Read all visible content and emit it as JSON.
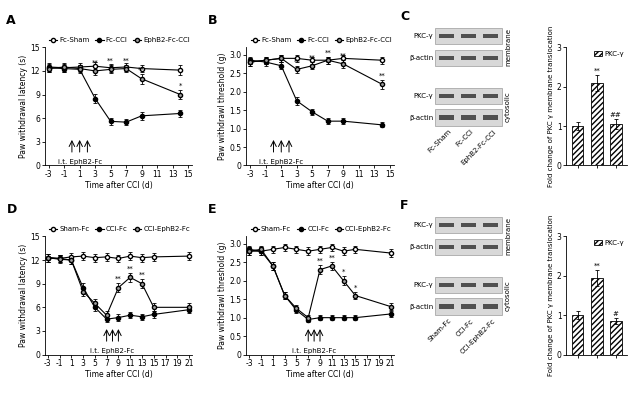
{
  "chart_data": [
    {
      "panel": "A",
      "type": "line",
      "x_label": "Time after CCI (d)",
      "y_label": "Paw withdrawal latency (s)",
      "x": [
        -3,
        -1,
        1,
        3,
        5,
        7,
        9,
        14
      ],
      "xlim": [
        -3.5,
        15.5
      ],
      "xticks": [
        -3,
        -1,
        1,
        3,
        5,
        7,
        9,
        11,
        13,
        15
      ],
      "ylim": [
        0,
        15
      ],
      "yticks": [
        0,
        3,
        6,
        9,
        12,
        15
      ],
      "legend": "top",
      "line_style": "solid",
      "series": [
        {
          "name": "Fc-Sham",
          "color": "#ffffff",
          "marker": "o",
          "values": [
            12.5,
            12.4,
            12.5,
            12.6,
            12.4,
            12.5,
            12.3,
            12.1
          ],
          "errors": [
            0.5,
            0.5,
            0.5,
            0.5,
            0.5,
            0.5,
            0.5,
            0.6
          ],
          "significance": [
            null,
            null,
            null,
            null,
            null,
            null,
            null,
            null
          ]
        },
        {
          "name": "Fc-CCI",
          "color": "#000000",
          "marker": "o",
          "values": [
            12.4,
            12.3,
            12.2,
            8.5,
            5.6,
            5.5,
            6.3,
            6.6
          ],
          "errors": [
            0.5,
            0.5,
            0.5,
            0.6,
            0.4,
            0.4,
            0.5,
            0.5
          ],
          "significance": [
            null,
            null,
            null,
            null,
            null,
            null,
            null,
            null
          ]
        },
        {
          "name": "EphB2-Fc-CCI",
          "color": "#a0a0a0",
          "marker": "o",
          "values": [
            12.3,
            12.5,
            12.3,
            12.0,
            12.2,
            12.3,
            11.0,
            9.0
          ],
          "errors": [
            0.5,
            0.5,
            0.5,
            0.5,
            0.5,
            0.5,
            0.6,
            0.6
          ],
          "significance": [
            null,
            null,
            null,
            "**",
            "**",
            "**",
            "**",
            "*"
          ]
        }
      ],
      "annotations": [
        {
          "text": "i.t. EphB2-Fc",
          "x": [
            0,
            1,
            2
          ]
        }
      ]
    },
    {
      "panel": "B",
      "type": "line",
      "x_label": "Time after CCI (d)",
      "y_label": "Paw withdrawl threshold (g)",
      "x": [
        -3,
        -1,
        1,
        3,
        5,
        7,
        9,
        14
      ],
      "xlim": [
        -3.5,
        15.5
      ],
      "xticks": [
        -3,
        -1,
        1,
        3,
        5,
        7,
        9,
        11,
        13,
        15
      ],
      "ylim": [
        0,
        3.2
      ],
      "yticks": [
        0,
        0.5,
        {
          "value": 1,
          "label": "1.0"
        },
        1.5,
        {
          "value": 2,
          "label": "2.0"
        },
        2.5,
        {
          "value": 3,
          "label": "3.0"
        }
      ],
      "legend": "top",
      "line_style": "solid",
      "series": [
        {
          "name": "Fc-Sham",
          "color": "#ffffff",
          "marker": "o",
          "values": [
            2.8,
            2.85,
            2.9,
            2.9,
            2.85,
            2.85,
            2.9,
            2.85
          ],
          "errors": [
            0.1,
            0.1,
            0.1,
            0.1,
            0.1,
            0.1,
            0.1,
            0.1
          ],
          "significance": [
            null,
            null,
            null,
            null,
            null,
            null,
            null,
            null
          ]
        },
        {
          "name": "Fc-CCI",
          "color": "#000000",
          "marker": "o",
          "values": [
            2.85,
            2.8,
            2.7,
            1.75,
            1.45,
            1.2,
            1.2,
            1.1
          ],
          "errors": [
            0.1,
            0.1,
            0.1,
            0.1,
            0.08,
            0.08,
            0.08,
            0.07
          ],
          "significance": [
            null,
            null,
            null,
            null,
            null,
            null,
            null,
            null
          ]
        },
        {
          "name": "EphB2-Fc-CCI",
          "color": "#a0a0a0",
          "marker": "o",
          "values": [
            2.8,
            2.85,
            2.9,
            2.6,
            2.7,
            2.85,
            2.75,
            2.2
          ],
          "errors": [
            0.1,
            0.1,
            0.1,
            0.1,
            0.1,
            0.1,
            0.1,
            0.12
          ],
          "significance": [
            null,
            null,
            null,
            "**",
            "**",
            "**",
            "**",
            "**"
          ]
        }
      ],
      "annotations": [
        {
          "text": "i.t. EphB2-Fc",
          "x": [
            0,
            1,
            2
          ]
        }
      ]
    },
    {
      "panel": "C",
      "type": "bar",
      "y_label": "Fold change of PKC γ membrane translocation",
      "categories": [
        "Fc-Sham",
        "Fc-CCI",
        "EphB2-Fc-CCI"
      ],
      "ylim": [
        0,
        3
      ],
      "yticks": [
        0,
        1,
        2,
        3
      ],
      "tick_labels": "y",
      "legend": "upper right",
      "series": [
        {
          "name": "PKC-γ",
          "color": "#ffffff",
          "values": [
            1.0,
            2.1,
            1.05
          ],
          "errors": [
            0.1,
            0.2,
            0.12
          ],
          "significance": [
            null,
            "**",
            "##"
          ]
        }
      ],
      "blot": {
        "rows": [
          {
            "label": "PKC-γ",
            "group": "membrane"
          },
          {
            "label": "β-actin",
            "group": "membrane"
          },
          {
            "label": "PKC-γ",
            "group": "cytosolic"
          },
          {
            "label": "β-actin",
            "group": "cytosolic"
          }
        ]
      }
    },
    {
      "panel": "D",
      "type": "line",
      "x_label": "Time after CCI (d)",
      "y_label": "Paw withdrawal latency (s)",
      "x": [
        -3,
        -1,
        1,
        3,
        5,
        7,
        9,
        11,
        13,
        15,
        21
      ],
      "xlim": [
        -3.5,
        21.5
      ],
      "xticks": [
        -3,
        -1,
        1,
        3,
        5,
        7,
        9,
        11,
        13,
        15,
        17,
        19,
        21
      ],
      "ylim": [
        0,
        15
      ],
      "yticks": [
        0,
        3,
        6,
        9,
        12,
        15
      ],
      "legend": "top",
      "line_style": "solid",
      "series": [
        {
          "name": "Sham-Fc",
          "color": "#ffffff",
          "marker": "o",
          "values": [
            12.3,
            12.2,
            12.4,
            12.5,
            12.3,
            12.4,
            12.2,
            12.5,
            12.3,
            12.4,
            12.5
          ],
          "errors": [
            0.5,
            0.5,
            0.5,
            0.5,
            0.5,
            0.5,
            0.5,
            0.5,
            0.5,
            0.5,
            0.5
          ],
          "significance": [
            null,
            null,
            null,
            null,
            null,
            null,
            null,
            null,
            null,
            null,
            null
          ]
        },
        {
          "name": "CCI-Fc",
          "color": "#000000",
          "marker": "o",
          "values": [
            12.3,
            12.2,
            12.0,
            8.5,
            6.0,
            4.5,
            4.7,
            5.0,
            4.8,
            5.1,
            5.7
          ],
          "errors": [
            0.5,
            0.5,
            0.5,
            0.6,
            0.5,
            0.4,
            0.4,
            0.4,
            0.4,
            0.4,
            0.4
          ],
          "significance": [
            null,
            null,
            null,
            null,
            null,
            null,
            null,
            null,
            null,
            null,
            null
          ]
        },
        {
          "name": "CCI-EphB2-Fc",
          "color": "#a0a0a0",
          "marker": "o",
          "values": [
            12.3,
            12.1,
            12.0,
            8.0,
            6.5,
            5.0,
            8.5,
            9.8,
            9.0,
            6.0,
            6.0
          ],
          "errors": [
            0.5,
            0.5,
            0.5,
            0.6,
            0.5,
            0.5,
            0.6,
            0.6,
            0.6,
            0.5,
            0.5
          ],
          "significance": [
            null,
            null,
            null,
            null,
            null,
            null,
            "**",
            "**",
            "**",
            null,
            null
          ]
        }
      ],
      "annotations": [
        {
          "text": "i.t. EphB2-Fc",
          "x": [
            7,
            8,
            9
          ]
        }
      ]
    },
    {
      "panel": "E",
      "type": "line",
      "x_label": "Time after CCI (d)",
      "y_label": "Paw withdrawl threshold (g)",
      "x": [
        -3,
        -1,
        1,
        3,
        5,
        7,
        9,
        11,
        13,
        15,
        21
      ],
      "xlim": [
        -3.5,
        21.5
      ],
      "xticks": [
        -3,
        -1,
        1,
        3,
        5,
        7,
        9,
        11,
        13,
        15,
        17,
        19,
        21
      ],
      "ylim": [
        0,
        3.2
      ],
      "yticks": [
        0,
        0.5,
        {
          "value": 1,
          "label": "1.0"
        },
        1.5,
        {
          "value": 2,
          "label": "2.0"
        },
        2.5,
        {
          "value": 3,
          "label": "3.0"
        }
      ],
      "legend": "top",
      "line_style": "solid",
      "series": [
        {
          "name": "Sham-Fc",
          "color": "#ffffff",
          "marker": "o",
          "values": [
            2.8,
            2.8,
            2.85,
            2.9,
            2.85,
            2.8,
            2.85,
            2.9,
            2.8,
            2.85,
            2.75
          ],
          "errors": [
            0.1,
            0.1,
            0.1,
            0.1,
            0.1,
            0.1,
            0.1,
            0.1,
            0.1,
            0.1,
            0.1
          ],
          "significance": [
            null,
            null,
            null,
            null,
            null,
            null,
            null,
            null,
            null,
            null,
            null
          ]
        },
        {
          "name": "CCI-Fc",
          "color": "#000000",
          "marker": "o",
          "values": [
            2.85,
            2.8,
            2.4,
            1.6,
            1.2,
            0.95,
            1.0,
            1.0,
            1.0,
            1.0,
            1.1
          ],
          "errors": [
            0.1,
            0.1,
            0.1,
            0.1,
            0.08,
            0.07,
            0.07,
            0.07,
            0.07,
            0.07,
            0.08
          ],
          "significance": [
            null,
            null,
            null,
            null,
            null,
            null,
            null,
            null,
            null,
            null,
            null
          ]
        },
        {
          "name": "CCI-EphB2-Fc",
          "color": "#a0a0a0",
          "marker": "o",
          "values": [
            2.8,
            2.85,
            2.4,
            1.6,
            1.25,
            1.0,
            2.3,
            2.4,
            2.0,
            1.6,
            1.3
          ],
          "errors": [
            0.1,
            0.1,
            0.1,
            0.1,
            0.08,
            0.07,
            0.12,
            0.12,
            0.12,
            0.1,
            0.1
          ],
          "significance": [
            null,
            null,
            null,
            null,
            null,
            null,
            "**",
            "**",
            "*",
            "*",
            null
          ]
        }
      ],
      "annotations": [
        {
          "text": "i.t. EphB2-Fc",
          "x": [
            7,
            8,
            9
          ]
        }
      ]
    },
    {
      "panel": "F",
      "type": "bar",
      "y_label": "Fold change of PKC γ membrane translocation",
      "categories": [
        "Sham-Fc",
        "CCI-Fc",
        "CCI-EphB2-Fc"
      ],
      "ylim": [
        0,
        3
      ],
      "yticks": [
        0,
        1,
        2,
        3
      ],
      "tick_labels": "y",
      "legend": "upper right",
      "series": [
        {
          "name": "PKC-γ",
          "color": "#ffffff",
          "values": [
            1.0,
            1.95,
            0.85
          ],
          "errors": [
            0.1,
            0.2,
            0.08
          ],
          "significance": [
            null,
            "**",
            "#"
          ]
        }
      ],
      "blot": {
        "rows": [
          {
            "label": "PKC-γ",
            "group": "membrane"
          },
          {
            "label": "β-actin",
            "group": "membrane"
          },
          {
            "label": "PKC-γ",
            "group": "cytosolic"
          },
          {
            "label": "β-actin",
            "group": "cytosolic"
          }
        ]
      }
    }
  ]
}
